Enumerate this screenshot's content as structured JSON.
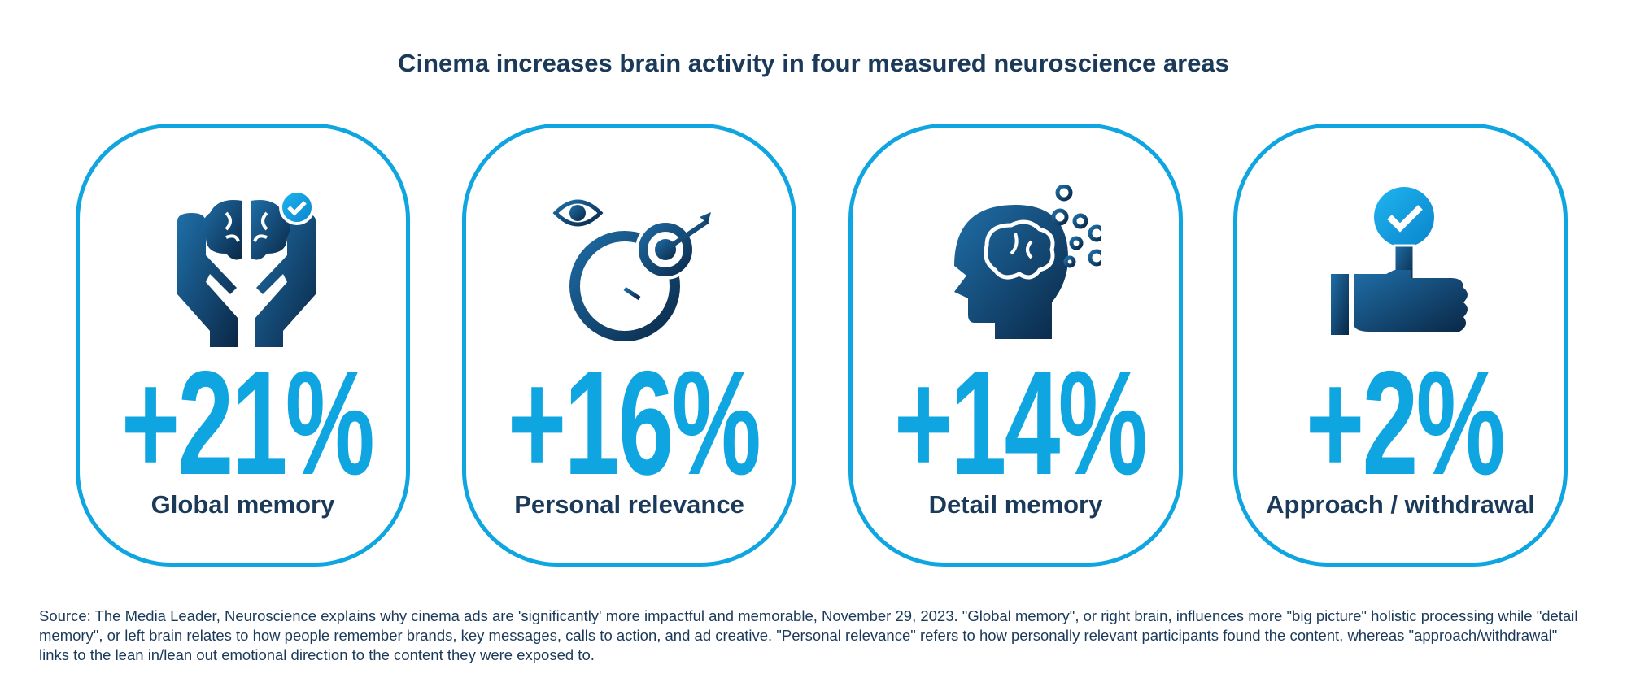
{
  "title": "Cinema increases brain activity in four measured neuroscience areas",
  "cards": [
    {
      "value": "+21%",
      "label": "Global memory"
    },
    {
      "value": "+16%",
      "label": "Personal relevance"
    },
    {
      "value": "+14%",
      "label": "Detail memory"
    },
    {
      "value": "+2%",
      "label": "Approach / withdrawal"
    }
  ],
  "source": "Source: The Media Leader, Neuroscience explains why cinema ads are 'significantly' more impactful and memorable, November 29, 2023. \"Global memory\", or right brain, influences more \"big picture\" holistic processing while \"detail memory\", or left brain relates to how people remember brands, key messages, calls to action, and ad creative. \"Personal relevance\" refers to how personally relevant participants found the content, whereas \"approach/withdrawal\" links to the lean in/lean out emotional direction to the content they were exposed to."
}
